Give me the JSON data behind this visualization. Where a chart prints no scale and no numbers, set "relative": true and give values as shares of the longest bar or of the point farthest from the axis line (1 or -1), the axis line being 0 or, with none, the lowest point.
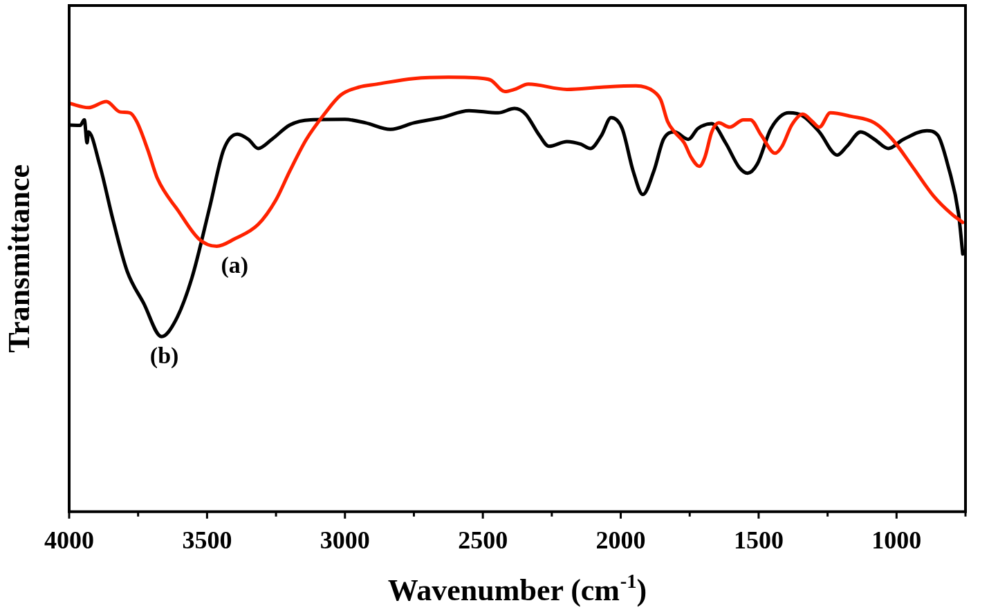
{
  "chart_data": {
    "type": "line",
    "relative": true,
    "xlabel": "Wavenumber (cm$^{-1}$)",
    "ylabel": "Transmittance",
    "xlim": [
      4000,
      750
    ],
    "xticks": [
      4000,
      {
        "value": 3750,
        "label": null
      },
      3500,
      {
        "value": 3250,
        "label": null
      },
      3000,
      {
        "value": 2750,
        "label": null
      },
      2500,
      {
        "value": 2250,
        "label": null
      },
      2000,
      {
        "value": 1750,
        "label": null
      },
      1500,
      {
        "value": 1250,
        "label": null
      },
      1000,
      {
        "value": 750,
        "label": null
      }
    ],
    "series": [
      {
        "name": "(a)",
        "color": "#ff2200",
        "x": [
          4000,
          3930,
          3865,
          3815,
          3780,
          3755,
          3715,
          3680,
          3605,
          3530,
          3465,
          3400,
          3315,
          3250,
          3200,
          3140,
          3075,
          3015,
          2950,
          2885,
          2750,
          2625,
          2495,
          2470,
          2420,
          2385,
          2335,
          2195,
          2070,
          1945,
          1880,
          1855,
          1830,
          1805,
          1770,
          1745,
          1715,
          1695,
          1670,
          1645,
          1605,
          1555,
          1530,
          1490,
          1440,
          1415,
          1380,
          1340,
          1305,
          1280,
          1240,
          1165,
          1080,
          1015,
          940,
          865,
          800,
          760
        ],
        "values": [
          0.94,
          0.93,
          0.944,
          0.92,
          0.918,
          0.898,
          0.833,
          0.767,
          0.693,
          0.628,
          0.611,
          0.628,
          0.661,
          0.718,
          0.784,
          0.857,
          0.915,
          0.959,
          0.977,
          0.984,
          0.997,
          1,
          0.997,
          0.993,
          0.967,
          0.972,
          0.984,
          0.972,
          0.977,
          0.98,
          0.967,
          0.948,
          0.898,
          0.874,
          0.849,
          0.816,
          0.795,
          0.816,
          0.874,
          0.895,
          0.885,
          0.902,
          0.902,
          0.866,
          0.825,
          0.841,
          0.89,
          0.915,
          0.898,
          0.885,
          0.918,
          0.91,
          0.895,
          0.857,
          0.792,
          0.726,
          0.685,
          0.666
        ]
      },
      {
        "name": "(b)",
        "color": "#000000",
        "x": [
          4000,
          3960,
          3945,
          3935,
          3930,
          3890,
          3840,
          3790,
          3730,
          3665,
          3615,
          3555,
          3490,
          3440,
          3390,
          3350,
          3315,
          3265,
          3200,
          3125,
          3000,
          2925,
          2835,
          2750,
          2650,
          2550,
          2445,
          2385,
          2345,
          2295,
          2260,
          2195,
          2145,
          2110,
          2070,
          2035,
          1995,
          1955,
          1920,
          1880,
          1845,
          1805,
          1755,
          1720,
          1670,
          1620,
          1570,
          1540,
          1505,
          1455,
          1390,
          1340,
          1280,
          1215,
          1180,
          1130,
          1080,
          1030,
          975,
          890,
          850,
          815,
          775,
          760
        ],
        "values": [
          0.89,
          0.889,
          0.902,
          0.849,
          0.874,
          0.8,
          0.669,
          0.554,
          0.48,
          0.403,
          0.439,
          0.538,
          0.702,
          0.833,
          0.869,
          0.857,
          0.836,
          0.857,
          0.89,
          0.902,
          0.903,
          0.895,
          0.88,
          0.895,
          0.907,
          0.923,
          0.918,
          0.928,
          0.915,
          0.866,
          0.841,
          0.852,
          0.846,
          0.836,
          0.866,
          0.907,
          0.882,
          0.784,
          0.73,
          0.784,
          0.857,
          0.874,
          0.857,
          0.882,
          0.893,
          0.849,
          0.792,
          0.779,
          0.8,
          0.882,
          0.918,
          0.911,
          0.874,
          0.821,
          0.841,
          0.874,
          0.857,
          0.836,
          0.857,
          0.877,
          0.866,
          0.8,
          0.685,
          0.593
        ]
      }
    ]
  }
}
